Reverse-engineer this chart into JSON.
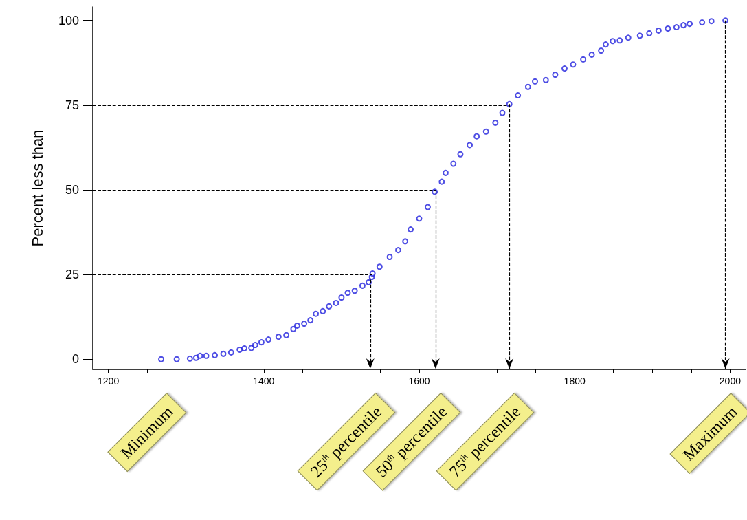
{
  "chart_data": {
    "type": "scatter",
    "ylabel": "Percent less than",
    "x": [
      1268,
      1288,
      1305,
      1313,
      1318,
      1326,
      1337,
      1348,
      1358,
      1369,
      1375,
      1384,
      1389,
      1397,
      1406,
      1419,
      1429,
      1438,
      1443,
      1452,
      1460,
      1467,
      1476,
      1484,
      1493,
      1500,
      1508,
      1517,
      1527,
      1535,
      1539,
      1540,
      1549,
      1562,
      1573,
      1582,
      1589,
      1600,
      1611,
      1620,
      1629,
      1634,
      1644,
      1653,
      1665,
      1674,
      1686,
      1698,
      1707,
      1716,
      1727,
      1740,
      1749,
      1763,
      1775,
      1787,
      1798,
      1811,
      1822,
      1834,
      1840,
      1849,
      1858,
      1869,
      1884,
      1896,
      1908,
      1920,
      1931,
      1940,
      1948,
      1964,
      1976,
      1994
    ],
    "series": [
      {
        "color": "#2222dd",
        "values": [
          0,
          0,
          0.2,
          0.4,
          1,
          1,
          1.2,
          1.6,
          2,
          2.8,
          3.2,
          3.3,
          4.2,
          5,
          5.8,
          6.6,
          7.1,
          8.9,
          9.9,
          10.5,
          11.5,
          13.4,
          14.2,
          15.6,
          16.6,
          18.2,
          19.6,
          20.2,
          21.7,
          22.7,
          24.3,
          25.3,
          27.3,
          30.2,
          32.2,
          34.8,
          38.3,
          41.5,
          44.9,
          49.4,
          52.4,
          55,
          57.7,
          60.5,
          63.2,
          65.8,
          67.2,
          69.8,
          72.7,
          75.3,
          77.9,
          80.4,
          82,
          82.4,
          84,
          85.8,
          87,
          88.5,
          89.9,
          91.1,
          92.9,
          93.9,
          94.1,
          94.9,
          95.5,
          96.2,
          97,
          97.6,
          98,
          98.6,
          99,
          99.4,
          99.8,
          100
        ]
      }
    ],
    "marker": "circle",
    "grid": false,
    "xlim": [
      1180,
      2020
    ],
    "xticks": [
      1200,
      {
        "value": 1250,
        "label": null
      },
      {
        "value": 1300,
        "label": null
      },
      {
        "value": 1350,
        "label": null
      },
      1400,
      {
        "value": 1450,
        "label": null
      },
      {
        "value": 1500,
        "label": null
      },
      {
        "value": 1550,
        "label": null
      },
      1600,
      {
        "value": 1650,
        "label": null
      },
      {
        "value": 1700,
        "label": null
      },
      {
        "value": 1750,
        "label": null
      },
      1800,
      {
        "value": 1850,
        "label": null
      },
      {
        "value": 1900,
        "label": null
      },
      {
        "value": 1950,
        "label": null
      },
      2000
    ],
    "ylim": [
      -3,
      104
    ],
    "yticks": [
      0,
      25,
      50,
      75,
      100
    ],
    "ref_lines": [
      {
        "axis": "y",
        "value": 25,
        "line_style": "dashed",
        "color": "#000000"
      },
      {
        "axis": "y",
        "value": 50,
        "line_style": "dashed",
        "color": "#000000"
      },
      {
        "axis": "y",
        "value": 75,
        "line_style": "dashed",
        "color": "#000000"
      },
      {
        "axis": "x",
        "value": 1537,
        "line_style": "dashed",
        "color": "#000000"
      },
      {
        "axis": "x",
        "value": 1621,
        "line_style": "dashed",
        "color": "#000000"
      },
      {
        "axis": "x",
        "value": 1716,
        "line_style": "dashed",
        "color": "#000000"
      },
      {
        "axis": "x",
        "value": 1994,
        "line_style": "dashed",
        "color": "#000000"
      }
    ],
    "annotations": [
      "Minimum",
      "25$^{th}$ percentile",
      "50$^{th}$ percentile",
      "75$^{th}$ percentile",
      "Maximum"
    ]
  }
}
